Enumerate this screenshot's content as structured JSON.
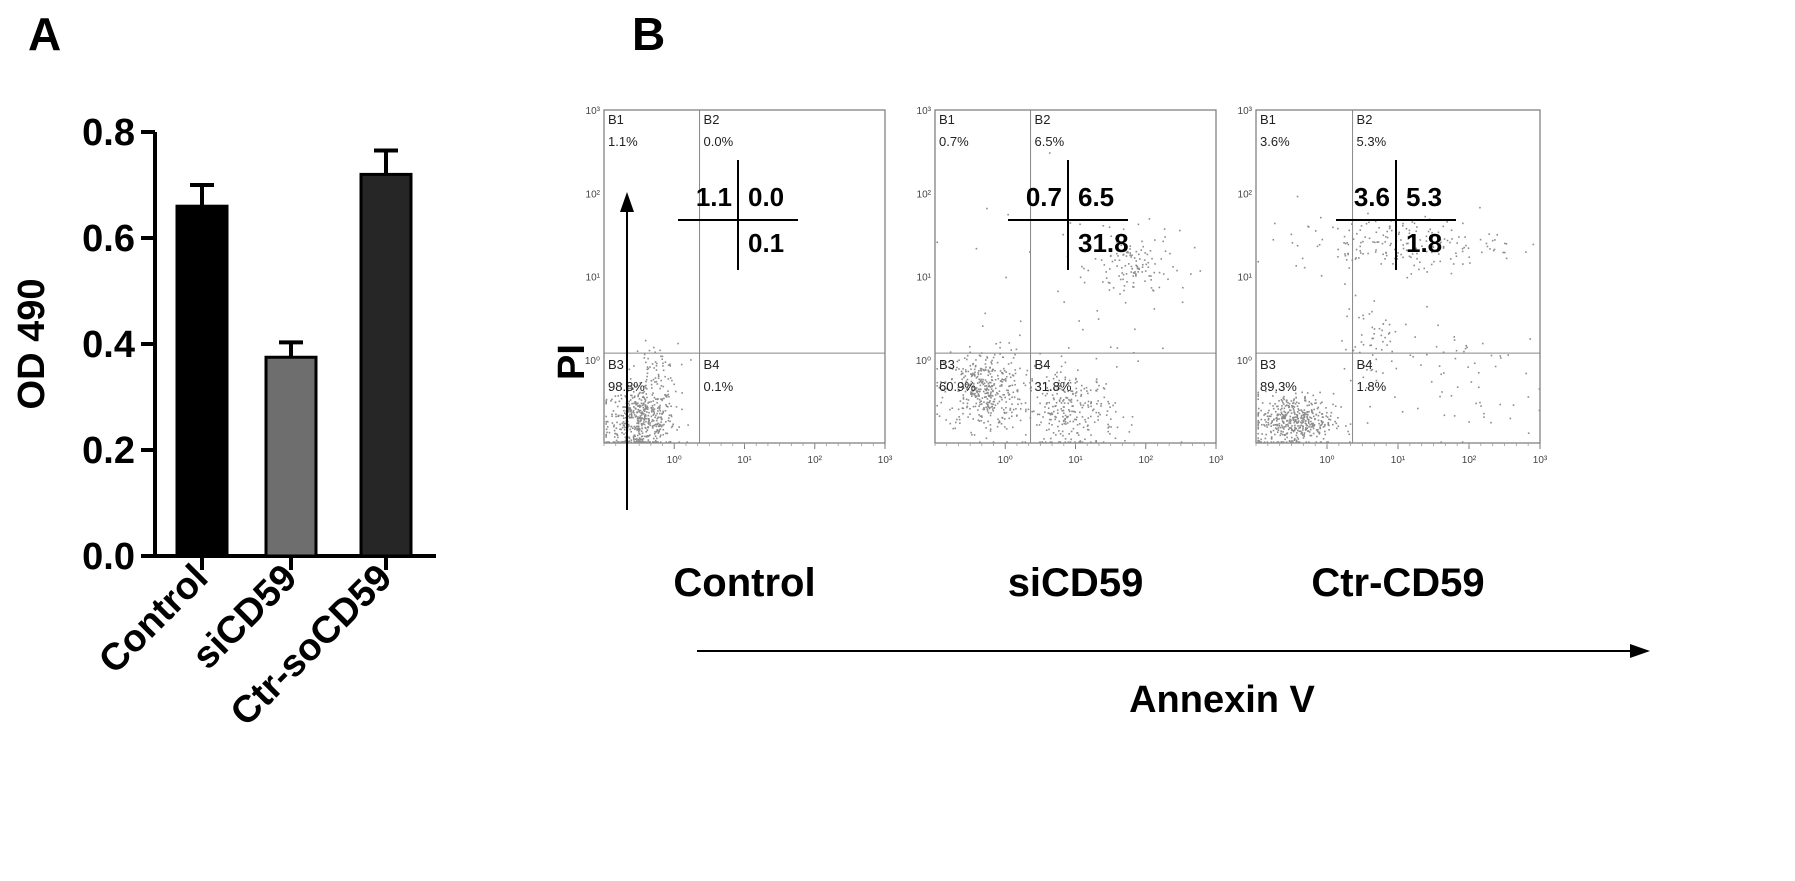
{
  "panel_a_letter": "A",
  "panel_b_letter": "B",
  "chart_data": [
    {
      "type": "bar",
      "categories": [
        "Control",
        "siCD59",
        "Ctr-soCD59"
      ],
      "values": [
        0.66,
        0.375,
        0.72
      ],
      "errors": [
        0.04,
        0.028,
        0.045
      ],
      "colors": [
        "#000000",
        "#6e6e6e",
        "#262626"
      ],
      "ylabel": "OD 490",
      "ylim": [
        0,
        0.8
      ],
      "yticks": [
        "0.0",
        "0.2",
        "0.4",
        "0.6",
        "0.8"
      ],
      "ytick_values": [
        0,
        0.2,
        0.4,
        0.6,
        0.8
      ]
    },
    {
      "type": "scatter",
      "xlabel": "Annexin V",
      "ylabel": "PI",
      "scale": "log",
      "axis_tick_labels": [
        "10⁰",
        "10¹",
        "10²",
        "10³"
      ],
      "panels": [
        {
          "name": "Control",
          "gates": {
            "B1": "1.1%",
            "B2": "0.0%",
            "B3": "98.8%",
            "B4": "0.1%"
          },
          "inset": {
            "B1": "1.1",
            "B2": "0.0",
            "B4": "0.1"
          }
        },
        {
          "name": "siCD59",
          "gates": {
            "B1": "0.7%",
            "B2": "6.5%",
            "B3": "60.9%",
            "B4": "31.8%"
          },
          "inset": {
            "B1": "0.7",
            "B2": "6.5",
            "B4": "31.8"
          }
        },
        {
          "name": "Ctr-CD59",
          "gates": {
            "B1": "3.6%",
            "B2": "5.3%",
            "B3": "89.3%",
            "B4": "1.8%"
          },
          "inset": {
            "B1": "3.6",
            "B2": "5.3",
            "B4": "1.8"
          }
        }
      ]
    }
  ]
}
